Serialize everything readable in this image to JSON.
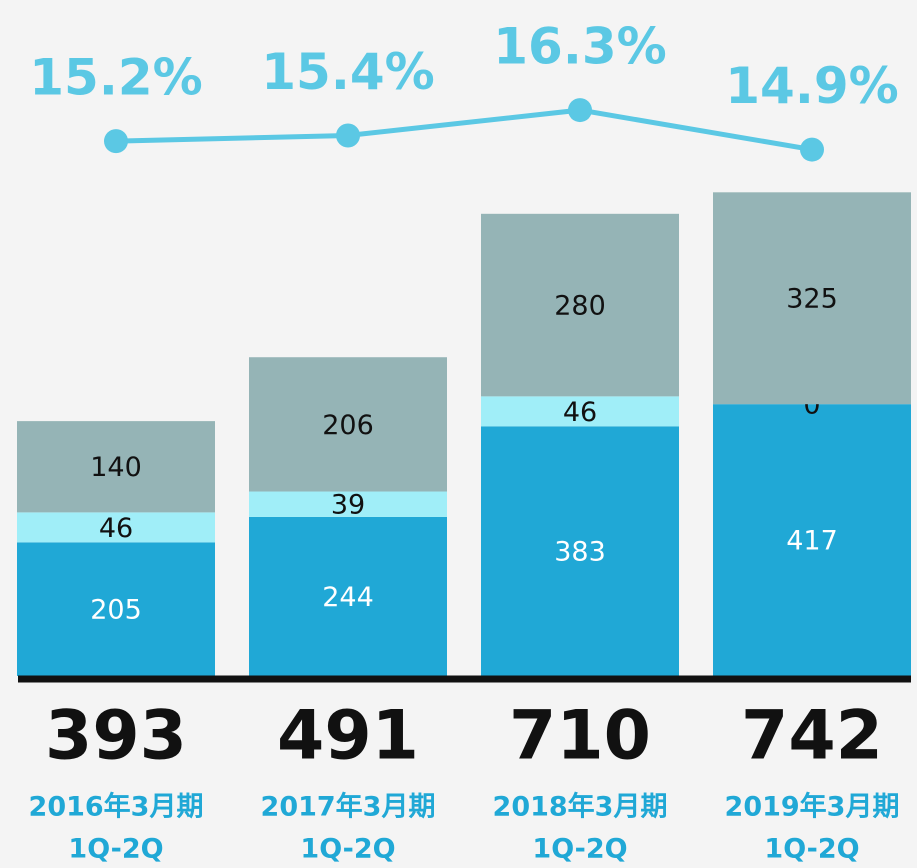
{
  "chart_data": {
    "type": "bar",
    "stacked": true,
    "categories": [
      [
        "2016年3月期",
        "1Q-2Q"
      ],
      [
        "2017年3月期",
        "1Q-2Q"
      ],
      [
        "2018年3月期",
        "1Q-2Q"
      ],
      [
        "2019年3月期",
        "1Q-2Q"
      ]
    ],
    "totals": [
      393,
      491,
      710,
      742
    ],
    "series": [
      {
        "color": "#20a8d6",
        "label_color": "#ffffff",
        "values": [
          205,
          244,
          383,
          417
        ]
      },
      {
        "color": "#a0eef8",
        "label_color": "#111111",
        "values": [
          46,
          39,
          46,
          0
        ]
      },
      {
        "color": "#95b4b6",
        "label_color": "#111111",
        "values": [
          140,
          206,
          280,
          325
        ]
      },
      {
        "type": "line",
        "axis": "y2",
        "color": "#5bc8e4",
        "values": [
          15.2,
          15.4,
          16.3,
          14.9
        ],
        "value_labels": [
          "15.2%",
          "15.4%",
          "16.3%",
          "14.9%"
        ]
      }
    ],
    "ylim": [
      0,
      1037
    ],
    "y2lim": [
      -3.75,
      20.2
    ]
  }
}
